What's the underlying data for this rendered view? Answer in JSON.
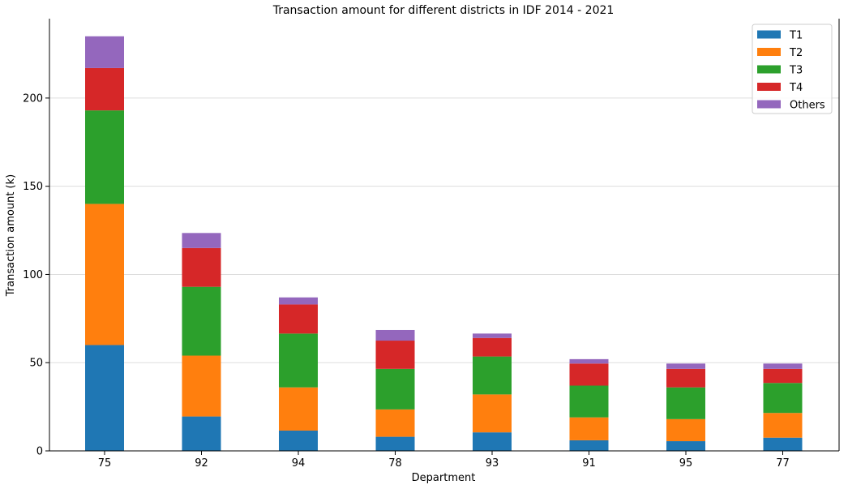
{
  "chart_data": {
    "type": "bar",
    "stacked": true,
    "title": "Transaction amount for different districts in IDF 2014 - 2021",
    "xlabel": "Department",
    "ylabel": "Transaction amount (k)",
    "ylim": [
      0,
      245
    ],
    "yticks": [
      0,
      50,
      100,
      150,
      200
    ],
    "grid": "horizontal",
    "legend_position": "top-right",
    "categories": [
      "75",
      "92",
      "94",
      "78",
      "93",
      "91",
      "95",
      "77"
    ],
    "series": [
      {
        "name": "T1",
        "color": "#1f77b4",
        "values": [
          60,
          19.5,
          11.5,
          8,
          10.5,
          6,
          5.5,
          7.5
        ]
      },
      {
        "name": "T2",
        "color": "#ff7f0e",
        "values": [
          80,
          34.5,
          24.5,
          15.5,
          21.5,
          13,
          12.5,
          14
        ]
      },
      {
        "name": "T3",
        "color": "#2ca02c",
        "values": [
          53,
          39,
          30.5,
          23,
          21.5,
          18,
          18,
          17
        ]
      },
      {
        "name": "T4",
        "color": "#d62728",
        "values": [
          24,
          22,
          16.5,
          16,
          10.5,
          12.5,
          10.5,
          8
        ]
      },
      {
        "name": "Others",
        "color": "#9467bd",
        "values": [
          18,
          8.5,
          4,
          6,
          2.5,
          2.5,
          3,
          3
        ]
      }
    ]
  }
}
